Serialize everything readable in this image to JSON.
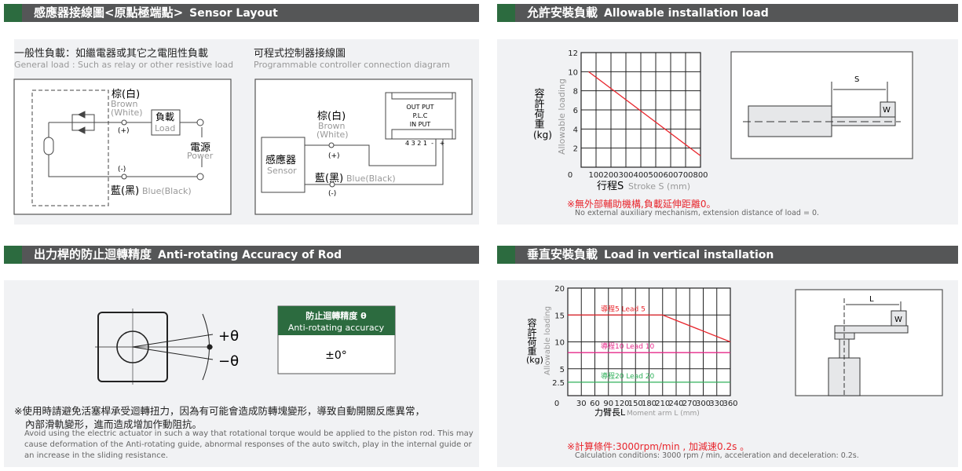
{
  "sections": {
    "sensor": {
      "title_zh": "感應器接線圖<原點極端點>",
      "title_en": "Sensor Layout",
      "general": {
        "title_zh": "一般性負載：如繼電器或其它之電阻性負載",
        "title_en": "General load : Such as relay or other resistive load",
        "brown_zh": "棕(白)",
        "brown_en": "Brown",
        "white_en": "(White)",
        "plus": "(+)",
        "minus": "(-)",
        "load_zh": "負載",
        "load_en": "Load",
        "power_zh": "電源",
        "power_en": "Power",
        "blue_zh": "藍(黑)",
        "blue_en": "Blue(Black)"
      },
      "plc": {
        "title_zh": "可程式控制器接線圖",
        "title_en": "Programmable controller connection diagram",
        "brown_zh": "棕(白)",
        "brown_en": "Brown",
        "white_en": "(White)",
        "plus": "(+)",
        "minus": "(-)",
        "blue_zh": "藍(黑)",
        "blue_en": "Blue(Black)",
        "sensor_zh": "感應器",
        "sensor_en": "Sensor",
        "output": "OUT PUT",
        "plc": "P.L.C",
        "input": "IN PUT",
        "terminals": "4 3 2 1  -   +"
      }
    },
    "allowable": {
      "title_zh": "允許安裝負載",
      "title_en": "Allowable installation load",
      "ylabel_zh": "容許荷重",
      "ylabel_unit": "(kg)",
      "ylabel_en": "Allowable loading",
      "xlabel_zh": "行程S",
      "xlabel_en": "Stroke S (mm)",
      "dim_s": "S",
      "weight": "W",
      "note_zh": "※無外部輔助機構,負載延伸距離0。",
      "note_en": "No external auxiliary mechanism, extension distance of load = 0."
    },
    "antirot": {
      "title_zh": "出力桿的防止迴轉精度",
      "title_en": "Anti-rotating Accuracy of Rod",
      "plus_theta": "+θ",
      "minus_theta": "−θ",
      "table_header_zh": "防止迴轉精度 θ",
      "table_header_en": "Anti-rotating accuracy",
      "table_value": "±0°",
      "note_zh": "※使用時請避免活塞桿承受迴轉扭力，因為有可能會造成防轉塊變形，導致自動開關反應異常，",
      "note_zh2": "內部滑軌變形，進而造成增加作動阻抗。",
      "note_en": "Avoid using the electric actuator in such a way that rotational torque would be applied to the piston rod. This may cause deformation of the Anti-rotating guide, abnormal responses of the auto switch, play in the internal guide or an increase in the sliding resistance."
    },
    "vertical": {
      "title_zh": "垂直安裝負載",
      "title_en": "Load in vertical installation",
      "ylabel_zh": "容許荷重",
      "ylabel_unit": "(kg)",
      "ylabel_en": "Allowable loading",
      "xlabel_zh": "力臂長L",
      "xlabel_en": "Moment arm L (mm)",
      "dim_l": "L",
      "weight": "W",
      "note_zh": "※計算條件:3000rpm/min , 加減速0.2s 。",
      "note_en": "Calculation conditions: 3000 rpm / min, acceleration and deceleration: 0.2s."
    }
  },
  "colors": {
    "header_bg": "#555657",
    "header_accent": "#2c6b3f",
    "panel_bg": "#f1f2f4",
    "red": "#e8262d",
    "pink": "#e6288a",
    "green": "#2fb05a"
  },
  "chart_data": [
    {
      "type": "line",
      "xlim": [
        0,
        800
      ],
      "ylim": [
        0,
        12
      ],
      "xticks": [
        0,
        100,
        200,
        300,
        400,
        500,
        600,
        700,
        800
      ],
      "yticks": [
        2,
        4,
        6,
        8,
        10,
        12
      ],
      "grid": true,
      "xlabel": "行程S Stroke S (mm)",
      "ylabel": "容許荷重(kg) Allowable loading",
      "series": [
        {
          "x": [
            50,
            800
          ],
          "y": [
            10,
            1.2
          ],
          "color": "#e8262d"
        }
      ]
    },
    {
      "type": "line",
      "xlim": [
        0,
        360
      ],
      "ylim": [
        0,
        20
      ],
      "xticks": [
        0,
        30,
        60,
        90,
        120,
        150,
        180,
        210,
        240,
        270,
        300,
        330,
        360
      ],
      "yticks": [
        2.5,
        5,
        10,
        15,
        20
      ],
      "grid": true,
      "xlabel": "力臂長L Moment arm L (mm)",
      "ylabel": "容許荷重(kg) Allowable loading",
      "series": [
        {
          "name": "導程5 Lead 5",
          "x": [
            0,
            210,
            360
          ],
          "y": [
            15,
            15,
            10
          ],
          "color": "#e8262d"
        },
        {
          "name": "導程10 Lead 10",
          "x": [
            0,
            360
          ],
          "y": [
            8,
            8
          ],
          "color": "#e6288a"
        },
        {
          "name": "導程20 Lead 20",
          "x": [
            0,
            360
          ],
          "y": [
            2.5,
            2.5
          ],
          "color": "#2fb05a"
        }
      ]
    }
  ]
}
